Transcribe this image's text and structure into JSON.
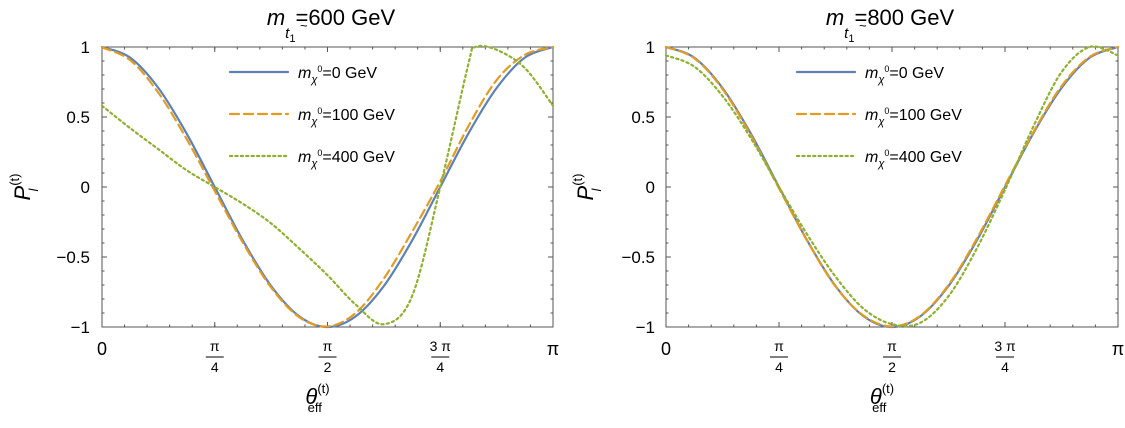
{
  "colors": {
    "series_0": "#5E81B5",
    "series_100": "#E19C24",
    "series_400": "#8FB032",
    "frame": "#555555"
  },
  "chart_data": [
    {
      "type": "line",
      "title": {
        "m": "m",
        "sub": "t",
        "subsub": "1",
        "tilde": "~",
        "suffix": "=600 GeV"
      },
      "xlabel": {
        "main": "θ",
        "sup": "(t)",
        "sub": "eff"
      },
      "ylabel": {
        "main": "P",
        "sup": "(t)",
        "sub": "l"
      },
      "xlim": [
        0,
        3.14159
      ],
      "ylim": [
        -1,
        1
      ],
      "grid": false,
      "legend_position": "top-right",
      "x_ticks": [
        {
          "value": 0,
          "num": "0",
          "den": ""
        },
        {
          "value": 0.785398,
          "num": "π",
          "den": "4"
        },
        {
          "value": 1.570796,
          "num": "π",
          "den": "2"
        },
        {
          "value": 2.356194,
          "num": "3 π",
          "den": "4"
        },
        {
          "value": 3.141593,
          "num": "π",
          "den": ""
        }
      ],
      "y_ticks": [
        {
          "value": 1,
          "label": "1"
        },
        {
          "value": 0.5,
          "label": "0.5"
        },
        {
          "value": 0,
          "label": "0"
        },
        {
          "value": -0.5,
          "label": "−0.5"
        },
        {
          "value": -1,
          "label": "−1"
        }
      ],
      "series": [
        {
          "legend": {
            "prefix": "m",
            "sub": "χ",
            "sup": "0",
            "suffix": "=0 GeV"
          },
          "style": "solid",
          "color": "#5E81B5",
          "x": [
            0,
            0.1963,
            0.3927,
            0.589,
            0.7854,
            0.9817,
            1.1781,
            1.3744,
            1.5708,
            1.7671,
            1.9635,
            2.1598,
            2.3562,
            2.5525,
            2.7489,
            2.9452,
            3.1416
          ],
          "y": [
            1.0,
            0.9239,
            0.7071,
            0.3827,
            0.0,
            -0.3827,
            -0.7071,
            -0.9239,
            -1.0,
            -0.9239,
            -0.7071,
            -0.3827,
            0.0,
            0.3827,
            0.7071,
            0.9239,
            1.0
          ]
        },
        {
          "legend": {
            "prefix": "m",
            "sub": "χ",
            "sup": "0",
            "suffix": "=100 GeV"
          },
          "style": "dashed",
          "color": "#E19C24",
          "x": [
            0,
            0.1963,
            0.3927,
            0.589,
            0.7854,
            0.9817,
            1.1781,
            1.3744,
            1.5708,
            1.7671,
            1.9635,
            2.1598,
            2.3562,
            2.5525,
            2.7489,
            2.9452,
            3.1416
          ],
          "y": [
            0.997,
            0.906,
            0.673,
            0.344,
            -0.028,
            -0.398,
            -0.718,
            -0.93,
            -0.996,
            -0.9,
            -0.654,
            -0.32,
            0.04,
            0.435,
            0.764,
            0.944,
            1.0
          ]
        },
        {
          "legend": {
            "prefix": "m",
            "sub": "χ",
            "sup": "0",
            "suffix": "=400 GeV"
          },
          "style": "dotted",
          "color": "#8FB032",
          "x": [
            0,
            0.1963,
            0.3927,
            0.589,
            0.7854,
            0.9817,
            1.1781,
            1.3744,
            1.5708,
            1.7671,
            1.9635,
            2.1598,
            2.3562,
            2.5525,
            2.6,
            2.7489,
            2.9452,
            3.1416
          ],
          "y": [
            0.58,
            0.42,
            0.27,
            0.12,
            0.0,
            -0.12,
            -0.26,
            -0.44,
            -0.63,
            -0.84,
            -0.98,
            -0.78,
            0.0,
            0.88,
            1.0,
            0.98,
            0.85,
            0.58
          ]
        }
      ]
    },
    {
      "type": "line",
      "title": {
        "m": "m",
        "sub": "t",
        "subsub": "1",
        "tilde": "~",
        "suffix": "=800 GeV"
      },
      "xlabel": {
        "main": "θ",
        "sup": "(t)",
        "sub": "eff"
      },
      "ylabel": {
        "main": "P",
        "sup": "(t)",
        "sub": "l"
      },
      "xlim": [
        0,
        3.14159
      ],
      "ylim": [
        -1,
        1
      ],
      "grid": false,
      "legend_position": "top-right",
      "x_ticks": [
        {
          "value": 0,
          "num": "0",
          "den": ""
        },
        {
          "value": 0.785398,
          "num": "π",
          "den": "4"
        },
        {
          "value": 1.570796,
          "num": "π",
          "den": "2"
        },
        {
          "value": 2.356194,
          "num": "3 π",
          "den": "4"
        },
        {
          "value": 3.141593,
          "num": "π",
          "den": ""
        }
      ],
      "y_ticks": [
        {
          "value": 1,
          "label": "1"
        },
        {
          "value": 0.5,
          "label": "0.5"
        },
        {
          "value": 0,
          "label": "0"
        },
        {
          "value": -0.5,
          "label": "−0.5"
        },
        {
          "value": -1,
          "label": "−1"
        }
      ],
      "series": [
        {
          "legend": {
            "prefix": "m",
            "sub": "χ",
            "sup": "0",
            "suffix": "=0 GeV"
          },
          "style": "solid",
          "color": "#5E81B5",
          "x": [
            0,
            0.1963,
            0.3927,
            0.589,
            0.7854,
            0.9817,
            1.1781,
            1.3744,
            1.5708,
            1.7671,
            1.9635,
            2.1598,
            2.3562,
            2.5525,
            2.7489,
            2.9452,
            3.1416
          ],
          "y": [
            1.0,
            0.9239,
            0.7071,
            0.3827,
            0.0,
            -0.3827,
            -0.7071,
            -0.9239,
            -1.0,
            -0.9239,
            -0.7071,
            -0.3827,
            0.0,
            0.3827,
            0.7071,
            0.9239,
            1.0
          ]
        },
        {
          "legend": {
            "prefix": "m",
            "sub": "χ",
            "sup": "0",
            "suffix": "=100 GeV"
          },
          "style": "dashed",
          "color": "#E19C24",
          "x": [
            0,
            0.1963,
            0.3927,
            0.589,
            0.7854,
            0.9817,
            1.1781,
            1.3744,
            1.5708,
            1.7671,
            1.9635,
            2.1598,
            2.3562,
            2.5525,
            2.7489,
            2.9452,
            3.1416
          ],
          "y": [
            1.0,
            0.92,
            0.7,
            0.37,
            -0.01,
            -0.385,
            -0.71,
            -0.92,
            -0.996,
            -0.92,
            -0.7,
            -0.37,
            0.01,
            0.39,
            0.72,
            0.93,
            1.0
          ]
        },
        {
          "legend": {
            "prefix": "m",
            "sub": "χ",
            "sup": "0",
            "suffix": "=400 GeV"
          },
          "style": "dotted",
          "color": "#8FB032",
          "x": [
            0,
            0.1963,
            0.3927,
            0.589,
            0.7854,
            0.9817,
            1.1781,
            1.3744,
            1.5708,
            1.7671,
            1.9635,
            2.1598,
            2.3562,
            2.5525,
            2.7489,
            2.9452,
            3.1416
          ],
          "y": [
            0.94,
            0.86,
            0.65,
            0.35,
            0.0,
            -0.34,
            -0.64,
            -0.87,
            -0.98,
            -0.97,
            -0.78,
            -0.44,
            -0.02,
            0.43,
            0.82,
            1.0,
            0.94
          ]
        }
      ]
    }
  ]
}
